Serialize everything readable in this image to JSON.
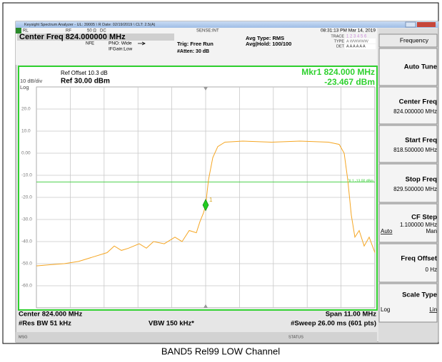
{
  "title_bar": "Keysight Spectrum Analyzer - UL: 39005 \\ R Date: 02/19/2019 \\ CLT: 2.5(A)",
  "status_row": {
    "rl": "RL",
    "rf": "RF",
    "impedance": "50 Ω",
    "coupling": "DC",
    "sense": "SENSE:INT",
    "datetime": "08:31:13 PM Mar 14, 2019"
  },
  "settings": {
    "center_freq": "Center Freq 824.000000 MHz",
    "nfe": "NFE",
    "pno": "PNO: Wide",
    "ifgain": "IFGain:Low",
    "trig": "Trig: Free Run",
    "atten": "#Atten: 30 dB",
    "avg_type": "Avg Type: RMS",
    "avg_hold": "Avg|Hold: 100/100",
    "trace_label": "TRACE",
    "trace": "1 2 3 4 5 6",
    "type_label": "TYPE",
    "type": "A WWWWW",
    "det_label": "DET",
    "det": "A A A A A A"
  },
  "graph": {
    "ref_offset": "Ref Offset 10.3 dB",
    "scale": "10 dB/div",
    "ref_level": "Ref 30.00 dBm",
    "scale_type": "Log",
    "marker_freq": "Mkr1 824.000 MHz",
    "marker_amp": "-23.467 dBm"
  },
  "footer": {
    "center": "Center 824.000 MHz",
    "res_bw": "#Res BW 51 kHz",
    "vbw": "VBW 150 kHz*",
    "span": "Span 11.00 MHz",
    "sweep": "#Sweep  26.00 ms (601 pts)",
    "msg": "MSG",
    "status": "STATUS"
  },
  "softkeys": {
    "menu": "Frequency",
    "auto_tune": "Auto Tune",
    "center_label": "Center Freq",
    "center_value": "824.000000 MHz",
    "start_label": "Start Freq",
    "start_value": "818.500000 MHz",
    "stop_label": "Stop Freq",
    "stop_value": "829.500000 MHz",
    "cf_step_label": "CF Step",
    "cf_step_value": "1.100000 MHz",
    "cf_auto": "Auto",
    "cf_man": "Man",
    "offset_label": "Freq Offset",
    "offset_value": "0 Hz",
    "scale_label": "Scale Type",
    "scale_log": "Log",
    "scale_lin": "Lin"
  },
  "caption": "BAND5 Rel99 LOW Channel",
  "chart_data": {
    "type": "line",
    "x": [
      818.5,
      818.941,
      819.405,
      819.869,
      820.333,
      820.798,
      821.03,
      821.262,
      821.494,
      821.842,
      822.074,
      822.306,
      822.654,
      823.002,
      823.234,
      823.466,
      823.698,
      823.814,
      823.93,
      824.0,
      824.093,
      824.232,
      824.394,
      824.627,
      825.207,
      826.135,
      827.063,
      827.992,
      828.34,
      828.502,
      828.618,
      828.734,
      828.85,
      828.99,
      829.152,
      829.314,
      829.5
    ],
    "series": [
      {
        "color": "#f5a623",
        "values": [
          -51,
          -50.5,
          -50,
          -49,
          -47,
          -45,
          -42,
          -44,
          -43,
          -41,
          -43,
          -40,
          -41,
          -38,
          -40,
          -35,
          -36,
          -31,
          -27,
          -23.467,
          -12,
          -2,
          3,
          5,
          5.5,
          5,
          5.5,
          5,
          4,
          0,
          -12,
          -28,
          -38,
          -35,
          -42,
          -38,
          -45
        ]
      }
    ],
    "xlim": [
      818.5,
      829.5
    ],
    "xticks": [
      819.6,
      820.7,
      821.8,
      822.9,
      824.0,
      825.1,
      826.2,
      827.3,
      828.4
    ],
    "ylim": [
      -70,
      30
    ],
    "yticks": [
      {
        "value": 20,
        "label": "20.0"
      },
      {
        "value": 10,
        "label": "10.0"
      },
      {
        "value": 0,
        "label": "0.00"
      },
      {
        "value": -10,
        "label": "-10.0"
      },
      {
        "value": -20,
        "label": "-20.0"
      },
      {
        "value": -30,
        "label": "-30.0"
      },
      {
        "value": -40,
        "label": "-40.0"
      },
      {
        "value": -50,
        "label": "-50.0"
      },
      {
        "value": -60,
        "label": "-60.0"
      }
    ],
    "grid": true,
    "marker": {
      "label": "1",
      "x": 824.0,
      "y": -23.467,
      "color": "#22cc22"
    },
    "display_line": {
      "value": -13,
      "label": "DL1 -13.00 dBm",
      "color": "#33cc33"
    }
  }
}
